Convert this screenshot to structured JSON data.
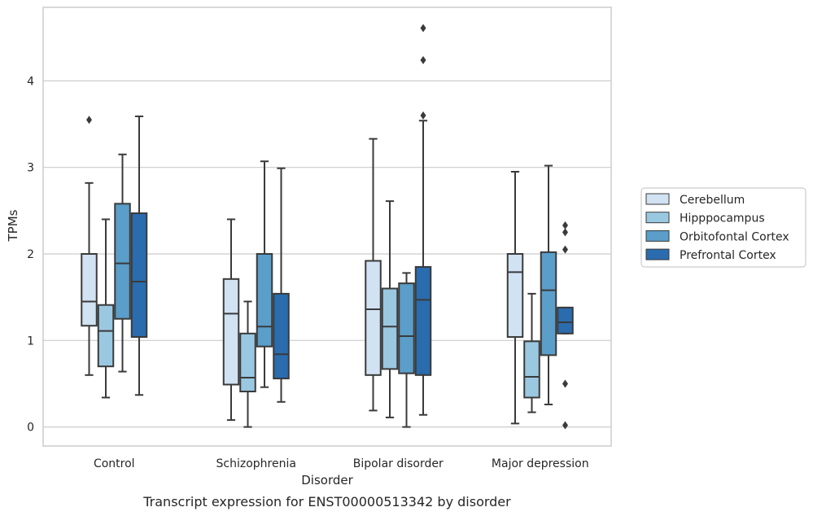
{
  "chart_data": {
    "type": "box",
    "caption": "Transcript expression for ENST00000513342 by disorder",
    "xlabel": "Disorder",
    "ylabel": "TPMs",
    "ylim": [
      -0.22,
      4.85
    ],
    "yticks": [
      0,
      1,
      2,
      3,
      4
    ],
    "grid": "horizontal",
    "legend_position": "right",
    "categories": [
      "Control",
      "Schizophrenia",
      "Bipolar disorder",
      "Major depression"
    ],
    "series": [
      {
        "name": "Cerebellum",
        "color": "#d1e2f2",
        "boxes": [
          {
            "whisker_low": 0.6,
            "q1": 1.17,
            "median": 1.45,
            "q3": 2.0,
            "whisker_high": 2.82,
            "outliers": [
              3.55
            ]
          },
          {
            "whisker_low": 0.08,
            "q1": 0.49,
            "median": 1.31,
            "q3": 1.71,
            "whisker_high": 2.4,
            "outliers": []
          },
          {
            "whisker_low": 0.19,
            "q1": 0.6,
            "median": 1.36,
            "q3": 1.92,
            "whisker_high": 3.33,
            "outliers": []
          },
          {
            "whisker_low": 0.04,
            "q1": 1.04,
            "median": 1.79,
            "q3": 2.0,
            "whisker_high": 2.95,
            "outliers": []
          }
        ]
      },
      {
        "name": "Hipppocampus",
        "color": "#9ac8e0",
        "boxes": [
          {
            "whisker_low": 0.34,
            "q1": 0.7,
            "median": 1.11,
            "q3": 1.41,
            "whisker_high": 2.4,
            "outliers": []
          },
          {
            "whisker_low": 0.0,
            "q1": 0.41,
            "median": 0.57,
            "q3": 1.08,
            "whisker_high": 1.45,
            "outliers": []
          },
          {
            "whisker_low": 0.11,
            "q1": 0.67,
            "median": 1.16,
            "q3": 1.6,
            "whisker_high": 2.61,
            "outliers": []
          },
          {
            "whisker_low": 0.17,
            "q1": 0.34,
            "median": 0.58,
            "q3": 0.99,
            "whisker_high": 1.54,
            "outliers": []
          }
        ]
      },
      {
        "name": "Orbitofontal Cortex",
        "color": "#5a9ec9",
        "boxes": [
          {
            "whisker_low": 0.64,
            "q1": 1.25,
            "median": 1.89,
            "q3": 2.58,
            "whisker_high": 3.15,
            "outliers": []
          },
          {
            "whisker_low": 0.46,
            "q1": 0.93,
            "median": 1.16,
            "q3": 2.0,
            "whisker_high": 3.07,
            "outliers": []
          },
          {
            "whisker_low": 0.0,
            "q1": 0.62,
            "median": 1.05,
            "q3": 1.66,
            "whisker_high": 1.78,
            "outliers": []
          },
          {
            "whisker_low": 0.26,
            "q1": 0.83,
            "median": 1.58,
            "q3": 2.02,
            "whisker_high": 3.02,
            "outliers": []
          }
        ]
      },
      {
        "name": "Prefrontal Cortex",
        "color": "#2a6cae",
        "boxes": [
          {
            "whisker_low": 0.37,
            "q1": 1.04,
            "median": 1.68,
            "q3": 2.47,
            "whisker_high": 3.59,
            "outliers": []
          },
          {
            "whisker_low": 0.29,
            "q1": 0.56,
            "median": 0.84,
            "q3": 1.54,
            "whisker_high": 2.99,
            "outliers": []
          },
          {
            "whisker_low": 0.14,
            "q1": 0.6,
            "median": 1.47,
            "q3": 1.85,
            "whisker_high": 3.54,
            "outliers": [
              3.6,
              4.24,
              4.61
            ]
          },
          {
            "whisker_low": 1.08,
            "q1": 1.08,
            "median": 1.21,
            "q3": 1.38,
            "whisker_high": 1.38,
            "outliers": [
              2.33,
              2.25,
              2.05,
              0.5,
              0.02
            ]
          }
        ]
      }
    ]
  }
}
